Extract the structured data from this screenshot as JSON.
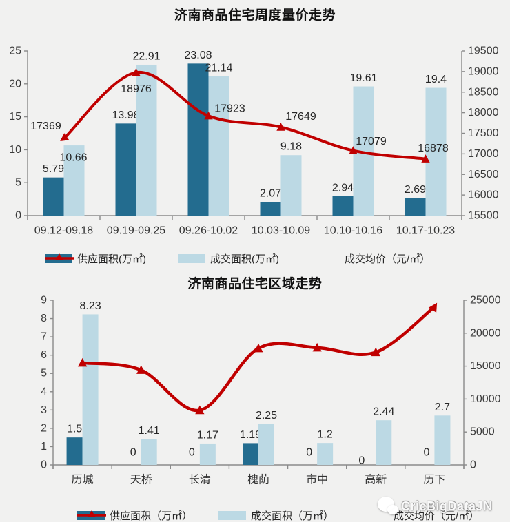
{
  "watermark": {
    "text": "CricBigDataJN"
  },
  "chart_data": [
    {
      "type": "bar+line",
      "title": "济南商品住宅周度量价走势",
      "categories": [
        "09.12-09.18",
        "09.19-09.25",
        "09.26-10.02",
        "10.03-10.09",
        "10.10-10.16",
        "10.17-10.23"
      ],
      "series": [
        {
          "name": "供应面积(万㎡)",
          "type": "bar",
          "axis": "left",
          "color": "#236c8f",
          "values": [
            5.79,
            13.98,
            23.08,
            2.07,
            2.94,
            2.69
          ]
        },
        {
          "name": "成交面积(万㎡)",
          "type": "bar",
          "axis": "left",
          "color": "#bcd9e4",
          "values": [
            10.66,
            22.91,
            21.14,
            9.18,
            19.61,
            19.4
          ]
        },
        {
          "name": "成交均价（元/㎡）",
          "type": "line",
          "axis": "right",
          "color": "#c00000",
          "values": [
            17369,
            18976,
            17923,
            17649,
            17079,
            16878
          ],
          "labels_visible": true
        }
      ],
      "left_axis": {
        "min": 0,
        "max": 25,
        "step": 5
      },
      "right_axis": {
        "min": 15500,
        "max": 19500,
        "step": 500
      },
      "grid": false,
      "legend_position": "bottom"
    },
    {
      "type": "bar+line",
      "title": "济南商品住宅区域走势",
      "categories": [
        "历城",
        "天桥",
        "长清",
        "槐荫",
        "市中",
        "高新",
        "历下"
      ],
      "series": [
        {
          "name": "供应面积（万㎡）",
          "type": "bar",
          "axis": "left",
          "color": "#236c8f",
          "values": [
            1.5,
            0,
            0,
            1.19,
            0,
            0,
            0
          ]
        },
        {
          "name": "成交面积（万㎡）",
          "type": "bar",
          "axis": "left",
          "color": "#bcd9e4",
          "values": [
            8.23,
            1.41,
            1.17,
            2.25,
            1.2,
            2.44,
            2.7
          ]
        },
        {
          "name": "成交均价（元/㎡）",
          "type": "line",
          "axis": "right",
          "color": "#c00000",
          "values": [
            15500,
            14400,
            8300,
            17700,
            17800,
            17100,
            24000
          ],
          "values_estimated": true,
          "labels_visible": false
        }
      ],
      "left_axis": {
        "min": 0,
        "max": 9,
        "step": 1
      },
      "right_axis": {
        "min": 0,
        "max": 25000,
        "step": 5000
      },
      "grid": false,
      "legend_position": "bottom"
    }
  ]
}
